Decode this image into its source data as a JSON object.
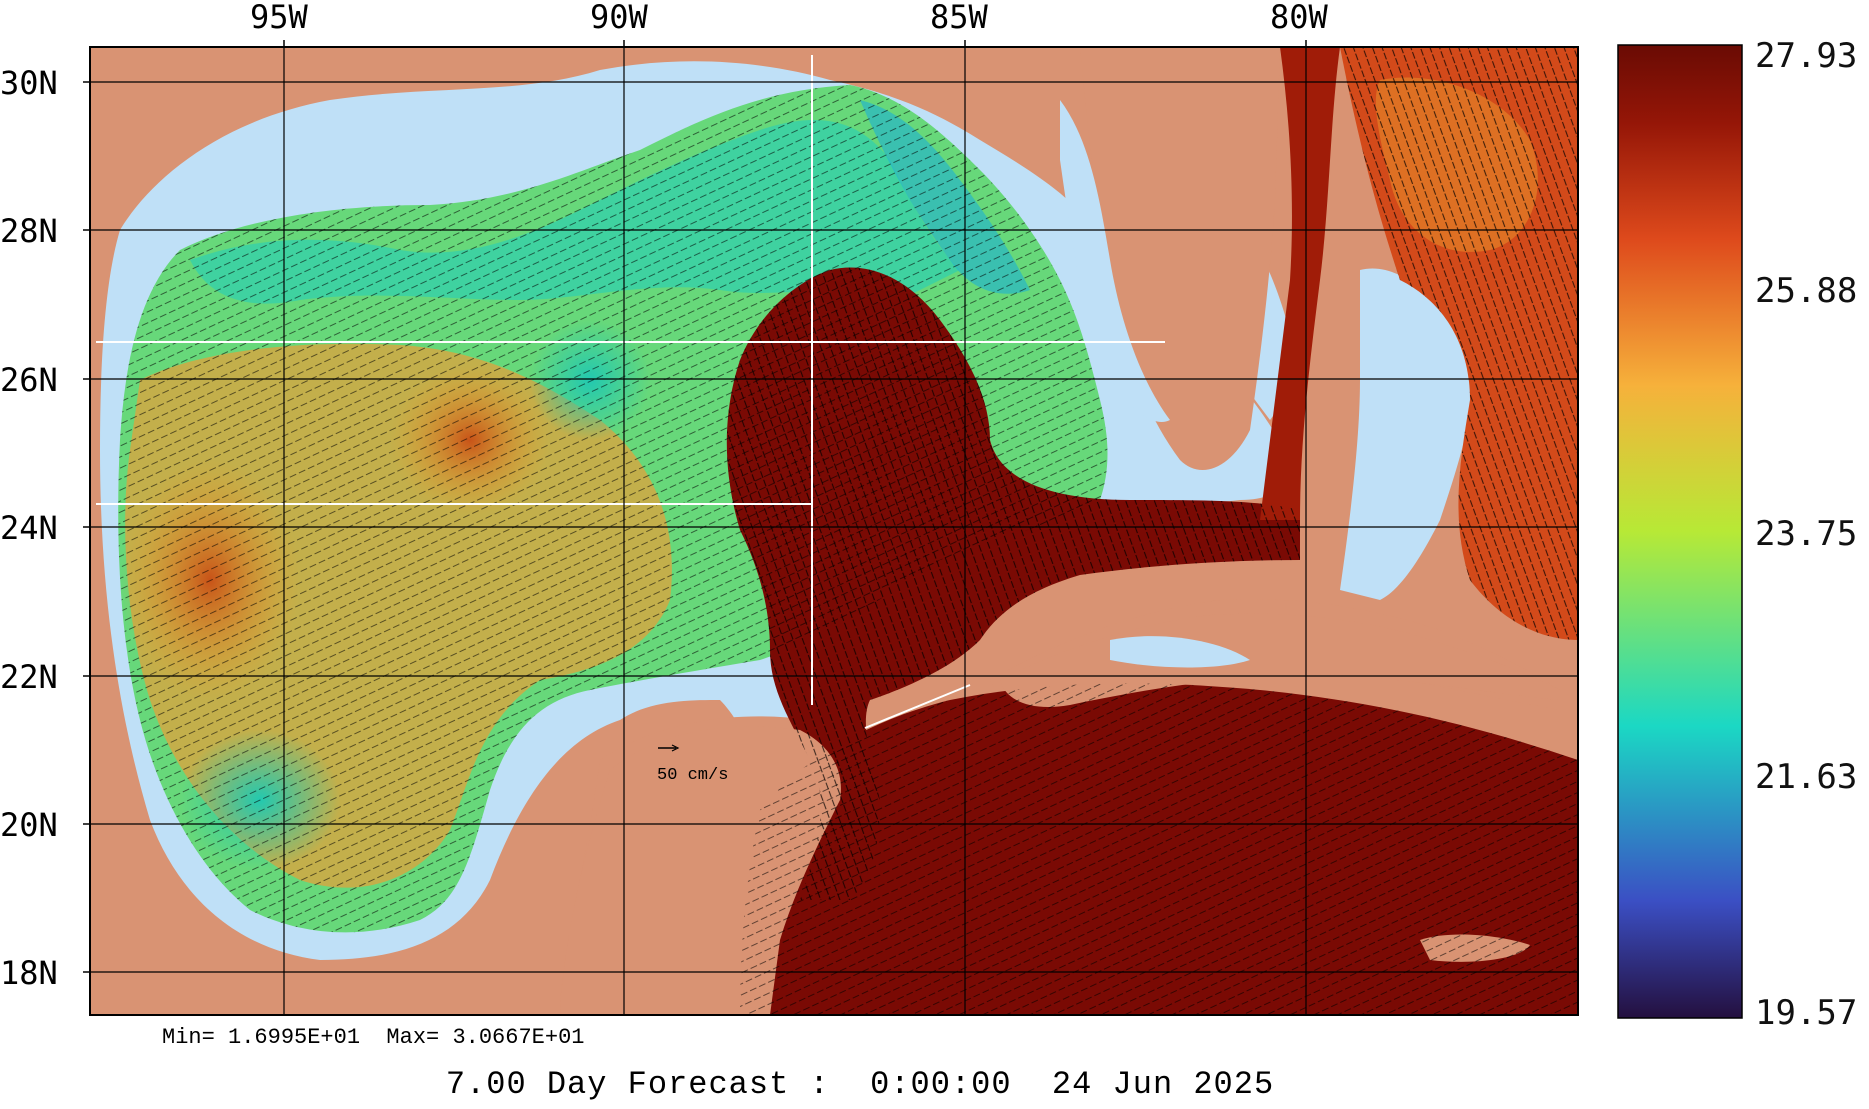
{
  "map": {
    "lon_labels": [
      "95W",
      "90W",
      "85W",
      "80W"
    ],
    "lat_labels": [
      "30N",
      "28N",
      "26N",
      "24N",
      "22N",
      "20N",
      "18N"
    ],
    "scale_label": "50 cm/s",
    "stats": "Min= 1.6995E+01  Max= 3.0667E+01",
    "title": "7.00 Day Forecast :  0:00:00  24 Jun 2025"
  },
  "colorbar": {
    "labels": [
      "27.93",
      "25.88",
      "23.75",
      "21.63",
      "19.57"
    ],
    "colors": [
      "#2a1450",
      "#3a56c8",
      "#1fd6c8",
      "#a8e83a",
      "#f5b13a",
      "#e0501e",
      "#8a1406",
      "#6e0c04"
    ]
  },
  "colors": {
    "land": "#d99373",
    "shelf": "#bfe0f7",
    "cool": "#3fcf9a",
    "warm": "#e0791f",
    "hot": "#7a0a04"
  }
}
